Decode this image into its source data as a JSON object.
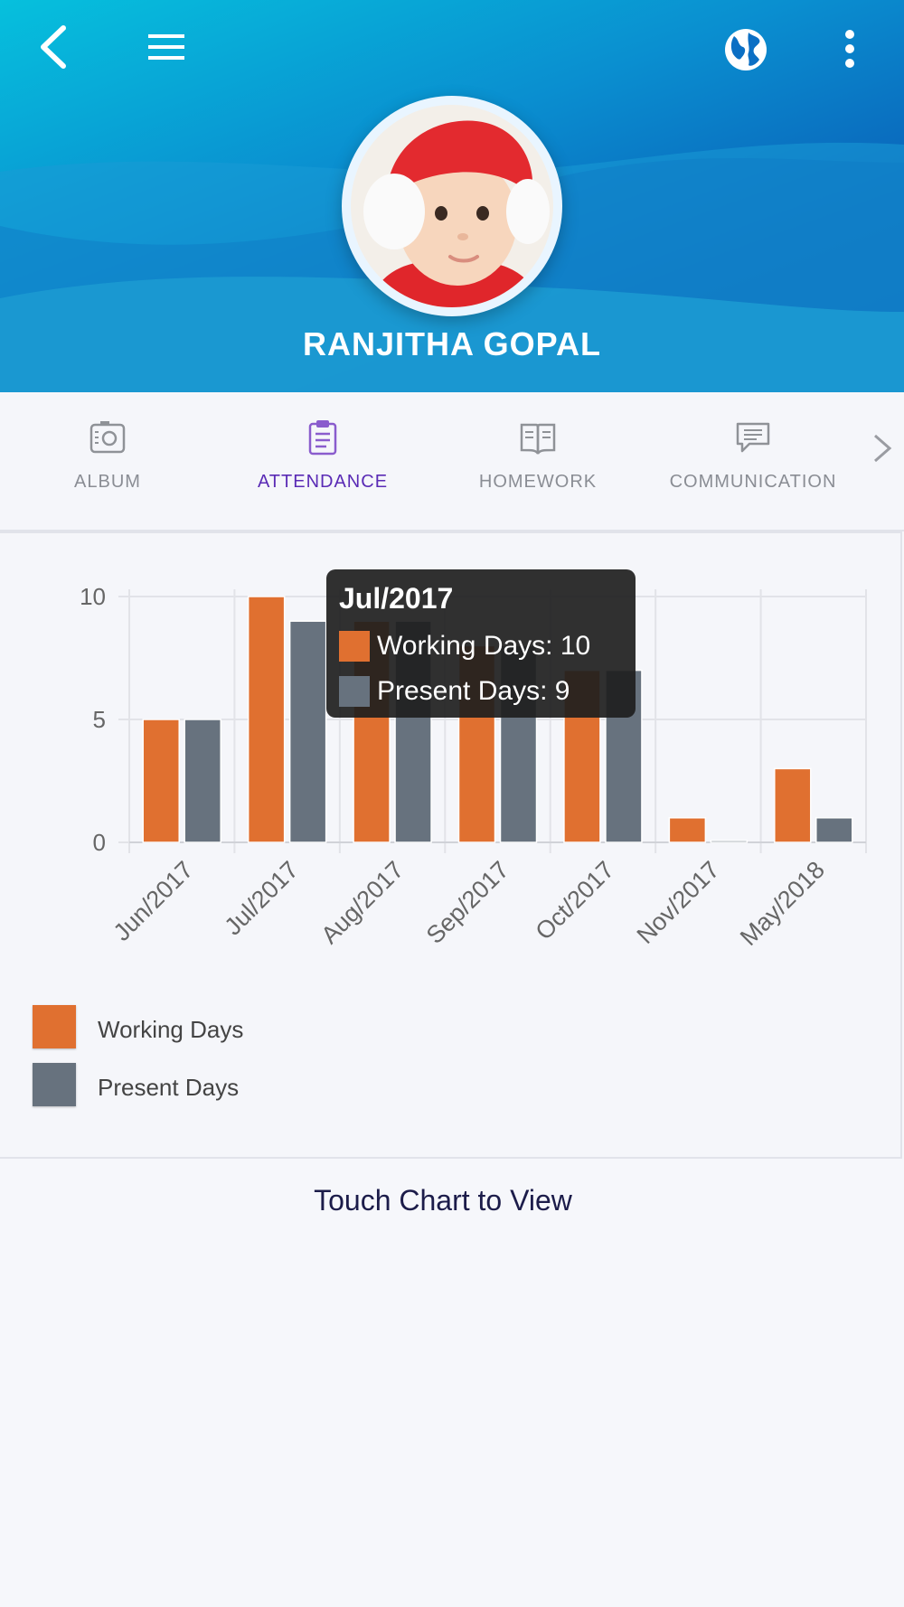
{
  "header": {
    "student_name": "RANJITHA  GOPAL",
    "icons": [
      "back-arrow-icon",
      "hamburger-menu-icon",
      "globe-icon",
      "more-vertical-icon"
    ],
    "gradient_colors": [
      "#06c0dd",
      "#0a5fb8"
    ]
  },
  "tabs": [
    {
      "label": "ALBUM",
      "icon": "album-camera-icon",
      "active": false
    },
    {
      "label": "ATTENDANCE",
      "icon": "clipboard-icon",
      "active": true
    },
    {
      "label": "HOMEWORK",
      "icon": "book-icon",
      "active": false
    },
    {
      "label": "COMMUNICATION",
      "icon": "chat-icon",
      "active": false
    }
  ],
  "colors": {
    "working": "#e07030",
    "present": "#67727e",
    "active_tab": "#5a2bb5"
  },
  "chart_data": {
    "type": "bar",
    "categories": [
      "Jun/2017",
      "Jul/2017",
      "Aug/2017",
      "Sep/2017",
      "Oct/2017",
      "Nov/2017",
      "May/2018"
    ],
    "series": [
      {
        "name": "Working Days",
        "values": [
          5,
          10,
          9,
          8,
          7,
          1,
          3
        ]
      },
      {
        "name": "Present Days",
        "values": [
          5,
          9,
          9,
          8,
          7,
          0,
          1
        ]
      }
    ],
    "y_ticks": [
      "0",
      "5",
      "10"
    ],
    "ylim": [
      0,
      10
    ],
    "grid": true,
    "legend": "bottom-left"
  },
  "tooltip": {
    "title": "Jul/2017",
    "working_text": "Working Days: 10",
    "present_text": "Present Days: 9"
  },
  "hint": "Touch Chart to View"
}
